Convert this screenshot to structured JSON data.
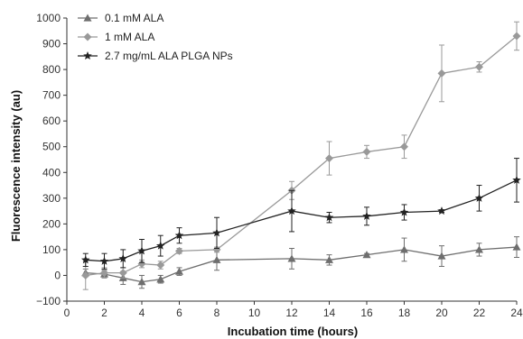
{
  "chart_data": {
    "type": "line",
    "title": "",
    "xlabel": "Incubation time (hours)",
    "ylabel": "Fluorescence intensity (au)",
    "xlim": [
      0,
      24
    ],
    "ylim": [
      -100,
      1000
    ],
    "xticks": [
      "0",
      "2",
      "4",
      "6",
      "8",
      "10",
      "12",
      "14",
      "16",
      "18",
      "20",
      "22",
      "24"
    ],
    "yticks": [
      "−100",
      "0",
      "100",
      "200",
      "300",
      "400",
      "500",
      "600",
      "700",
      "800",
      "900",
      "1000"
    ],
    "grid": false,
    "legend_position": "top-left",
    "series": [
      {
        "name": "0.1 mM ALA",
        "color": "#6e6e6e",
        "marker": "triangle",
        "x": [
          1,
          2,
          3,
          4,
          5,
          6,
          8,
          12,
          14,
          16,
          18,
          20,
          22,
          24
        ],
        "y": [
          10,
          5,
          -10,
          -25,
          -15,
          15,
          60,
          65,
          60,
          80,
          100,
          75,
          100,
          110
        ],
        "err": [
          15,
          15,
          25,
          25,
          15,
          15,
          40,
          40,
          20,
          5,
          45,
          40,
          25,
          40
        ]
      },
      {
        "name": "1 mM ALA",
        "color": "#999999",
        "marker": "diamond",
        "x": [
          1,
          2,
          3,
          4,
          5,
          6,
          8,
          12,
          14,
          16,
          18,
          20,
          22,
          24
        ],
        "y": [
          0,
          10,
          10,
          45,
          40,
          95,
          100,
          330,
          455,
          480,
          500,
          785,
          810,
          930
        ],
        "err": [
          55,
          20,
          20,
          15,
          15,
          10,
          10,
          35,
          65,
          25,
          45,
          110,
          20,
          55
        ]
      },
      {
        "name": "2.7 mg/mL ALA PLGA NPs",
        "color": "#222222",
        "marker": "star",
        "x": [
          1,
          2,
          3,
          4,
          5,
          6,
          8,
          12,
          14,
          16,
          18,
          20,
          22,
          24
        ],
        "y": [
          60,
          55,
          65,
          95,
          115,
          155,
          165,
          250,
          225,
          230,
          245,
          250,
          300,
          370
        ],
        "err": [
          25,
          30,
          35,
          45,
          40,
          30,
          60,
          80,
          20,
          35,
          30,
          5,
          50,
          85
        ]
      }
    ]
  }
}
